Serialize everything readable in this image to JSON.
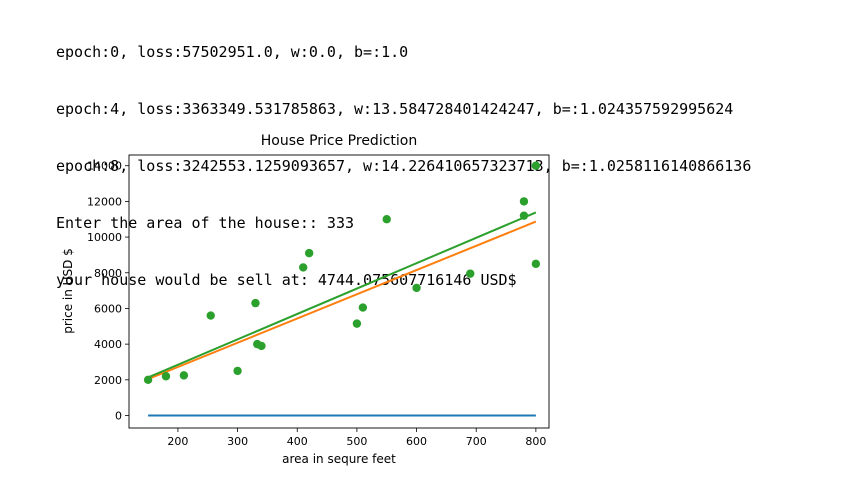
{
  "console": {
    "lines": [
      "epoch:0, loss:57502951.0, w:0.0, b=:1.0",
      "epoch:4, loss:3363349.531785863, w:13.584728401424247, b=:1.024357592995624",
      "epoch:8, loss:3242553.1259093657, w:14.226410657323713, b=:1.0258116140866136",
      "Enter the area of the house:: 333",
      "your house would be sell at: 4744.075607716146 USD$"
    ]
  },
  "chart_data": {
    "type": "scatter",
    "title": "House Price Prediction",
    "xlabel": "area in sequre feet",
    "ylabel": "price in USD $",
    "xlim": [
      118,
      822
    ],
    "ylim": [
      -700,
      14600
    ],
    "xticks": [
      200,
      300,
      400,
      500,
      600,
      700,
      800
    ],
    "yticks": [
      0,
      2000,
      4000,
      6000,
      8000,
      10000,
      12000,
      14000
    ],
    "grid": false,
    "colors": {
      "points": "#2ca02c",
      "line_epoch0": "#1f77b4",
      "line_epoch4": "#ff7f0e",
      "line_epoch8": "#2ca02c"
    },
    "points": [
      {
        "x": 150,
        "y": 2000
      },
      {
        "x": 180,
        "y": 2200
      },
      {
        "x": 210,
        "y": 2250
      },
      {
        "x": 255,
        "y": 5600
      },
      {
        "x": 300,
        "y": 2500
      },
      {
        "x": 330,
        "y": 6300
      },
      {
        "x": 333,
        "y": 4000
      },
      {
        "x": 340,
        "y": 3900
      },
      {
        "x": 410,
        "y": 8300
      },
      {
        "x": 420,
        "y": 9100
      },
      {
        "x": 500,
        "y": 5150
      },
      {
        "x": 510,
        "y": 6050
      },
      {
        "x": 550,
        "y": 11000
      },
      {
        "x": 600,
        "y": 7150
      },
      {
        "x": 690,
        "y": 7950
      },
      {
        "x": 780,
        "y": 12000
      },
      {
        "x": 780,
        "y": 11200
      },
      {
        "x": 800,
        "y": 14000
      },
      {
        "x": 800,
        "y": 8500
      }
    ],
    "series": [
      {
        "w": 0.0,
        "b": 1.0,
        "x": [
          150,
          800
        ]
      },
      {
        "w": 13.584728401424247,
        "b": 1.024357592995624,
        "x": [
          150,
          800
        ]
      },
      {
        "w": 14.226410657323713,
        "b": 1.0258116140866136,
        "x": [
          150,
          800
        ]
      }
    ]
  }
}
